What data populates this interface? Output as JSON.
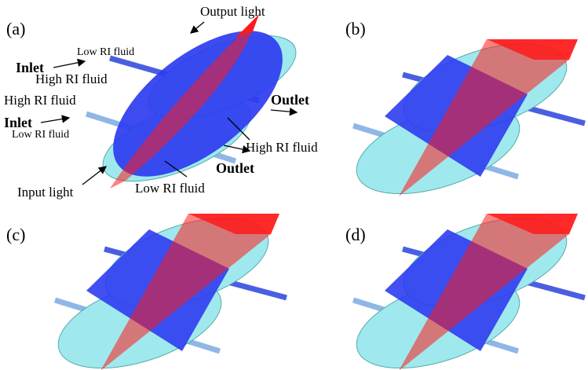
{
  "panels": [
    {
      "label": "(a)",
      "annotations": [
        "Output light",
        "Low RI fluid",
        "Inlet",
        "High RI fluid",
        "High RI fluid",
        "Inlet",
        "Low RI fluid",
        "Outlet",
        "High RI fluid",
        "Outlet",
        "Input light",
        "Low RI fluid"
      ]
    },
    {
      "label": "(b)"
    },
    {
      "label": "(c)"
    },
    {
      "label": "(d)"
    }
  ]
}
